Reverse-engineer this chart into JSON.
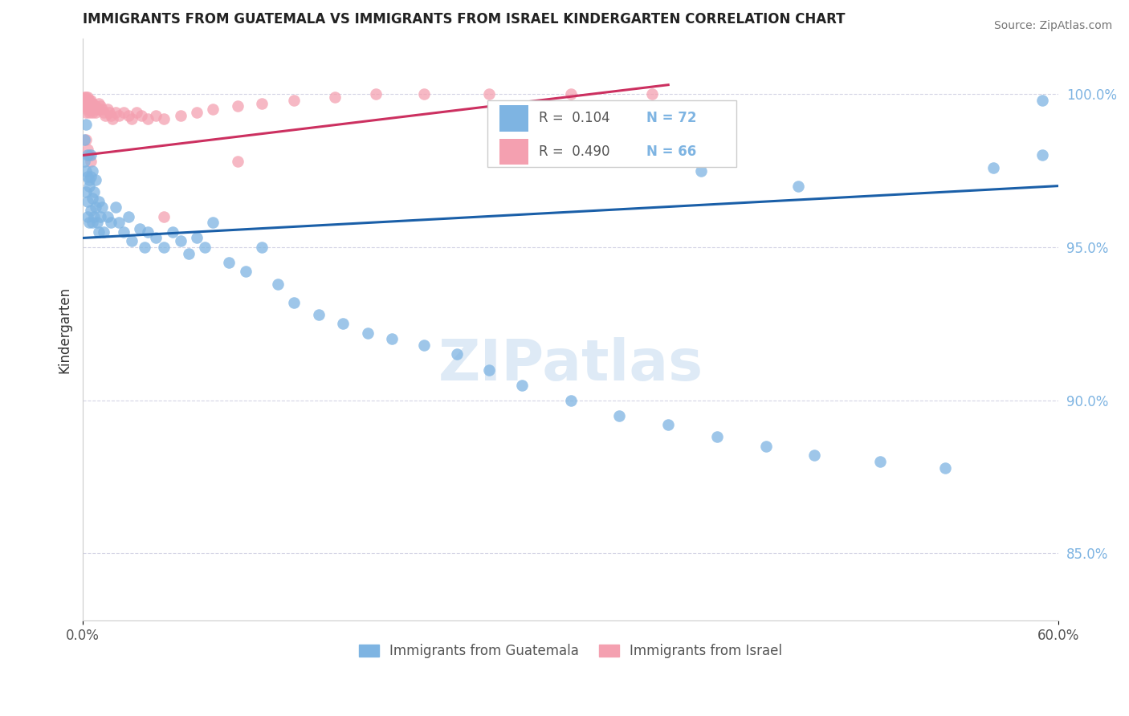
{
  "title": "IMMIGRANTS FROM GUATEMALA VS IMMIGRANTS FROM ISRAEL KINDERGARTEN CORRELATION CHART",
  "source": "Source: ZipAtlas.com",
  "ylabel": "Kindergarten",
  "xlim": [
    0.0,
    0.6
  ],
  "ylim": [
    0.828,
    1.018
  ],
  "xticks": [
    0.0,
    0.6
  ],
  "xticklabels": [
    "0.0%",
    "60.0%"
  ],
  "yticks": [
    0.85,
    0.9,
    0.95,
    1.0
  ],
  "yticklabels": [
    "85.0%",
    "90.0%",
    "95.0%",
    "100.0%"
  ],
  "legend_labels": [
    "Immigrants from Guatemala",
    "Immigrants from Israel"
  ],
  "R_guatemala": 0.104,
  "N_guatemala": 72,
  "R_israel": 0.49,
  "N_israel": 66,
  "color_guatemala": "#7EB4E2",
  "color_israel": "#F4A0B0",
  "line_color_guatemala": "#1A5FA8",
  "line_color_israel": "#CC3060",
  "watermark": "ZIPatlas",
  "guatemala_x": [
    0.001,
    0.001,
    0.002,
    0.002,
    0.002,
    0.003,
    0.003,
    0.003,
    0.003,
    0.004,
    0.004,
    0.004,
    0.005,
    0.005,
    0.005,
    0.006,
    0.006,
    0.006,
    0.007,
    0.007,
    0.008,
    0.008,
    0.009,
    0.01,
    0.01,
    0.011,
    0.012,
    0.013,
    0.015,
    0.017,
    0.02,
    0.022,
    0.025,
    0.028,
    0.03,
    0.035,
    0.038,
    0.04,
    0.045,
    0.05,
    0.055,
    0.06,
    0.065,
    0.07,
    0.075,
    0.08,
    0.09,
    0.1,
    0.11,
    0.12,
    0.13,
    0.145,
    0.16,
    0.175,
    0.19,
    0.21,
    0.23,
    0.25,
    0.27,
    0.3,
    0.33,
    0.36,
    0.39,
    0.42,
    0.45,
    0.49,
    0.53,
    0.56,
    0.59,
    0.59,
    0.38,
    0.44
  ],
  "guatemala_y": [
    0.978,
    0.985,
    0.99,
    0.975,
    0.968,
    0.98,
    0.973,
    0.965,
    0.96,
    0.972,
    0.958,
    0.97,
    0.98,
    0.973,
    0.962,
    0.975,
    0.966,
    0.958,
    0.968,
    0.96,
    0.972,
    0.963,
    0.958,
    0.965,
    0.955,
    0.96,
    0.963,
    0.955,
    0.96,
    0.958,
    0.963,
    0.958,
    0.955,
    0.96,
    0.952,
    0.956,
    0.95,
    0.955,
    0.953,
    0.95,
    0.955,
    0.952,
    0.948,
    0.953,
    0.95,
    0.958,
    0.945,
    0.942,
    0.95,
    0.938,
    0.932,
    0.928,
    0.925,
    0.922,
    0.92,
    0.918,
    0.915,
    0.91,
    0.905,
    0.9,
    0.895,
    0.892,
    0.888,
    0.885,
    0.882,
    0.88,
    0.878,
    0.976,
    0.98,
    0.998,
    0.975,
    0.97
  ],
  "israel_x": [
    0.001,
    0.001,
    0.001,
    0.001,
    0.002,
    0.002,
    0.002,
    0.002,
    0.002,
    0.003,
    0.003,
    0.003,
    0.003,
    0.004,
    0.004,
    0.004,
    0.004,
    0.005,
    0.005,
    0.005,
    0.006,
    0.006,
    0.006,
    0.007,
    0.007,
    0.008,
    0.008,
    0.009,
    0.01,
    0.01,
    0.011,
    0.012,
    0.013,
    0.014,
    0.015,
    0.016,
    0.017,
    0.018,
    0.02,
    0.022,
    0.025,
    0.028,
    0.03,
    0.033,
    0.036,
    0.04,
    0.045,
    0.05,
    0.06,
    0.07,
    0.08,
    0.095,
    0.11,
    0.13,
    0.155,
    0.18,
    0.21,
    0.25,
    0.3,
    0.35,
    0.05,
    0.095,
    0.002,
    0.003,
    0.004,
    0.005
  ],
  "israel_y": [
    0.999,
    0.998,
    0.997,
    0.996,
    0.999,
    0.998,
    0.997,
    0.996,
    0.994,
    0.999,
    0.998,
    0.997,
    0.995,
    0.998,
    0.997,
    0.996,
    0.994,
    0.998,
    0.997,
    0.995,
    0.997,
    0.996,
    0.994,
    0.996,
    0.995,
    0.996,
    0.994,
    0.995,
    0.997,
    0.995,
    0.996,
    0.995,
    0.994,
    0.993,
    0.995,
    0.994,
    0.993,
    0.992,
    0.994,
    0.993,
    0.994,
    0.993,
    0.992,
    0.994,
    0.993,
    0.992,
    0.993,
    0.992,
    0.993,
    0.994,
    0.995,
    0.996,
    0.997,
    0.998,
    0.999,
    1.0,
    1.0,
    1.0,
    1.0,
    1.0,
    0.96,
    0.978,
    0.985,
    0.982,
    0.98,
    0.978
  ],
  "trend_g_x0": 0.0,
  "trend_g_x1": 0.6,
  "trend_g_y0": 0.953,
  "trend_g_y1": 0.97,
  "trend_i_x0": 0.0,
  "trend_i_x1": 0.36,
  "trend_i_y0": 0.98,
  "trend_i_y1": 1.003
}
